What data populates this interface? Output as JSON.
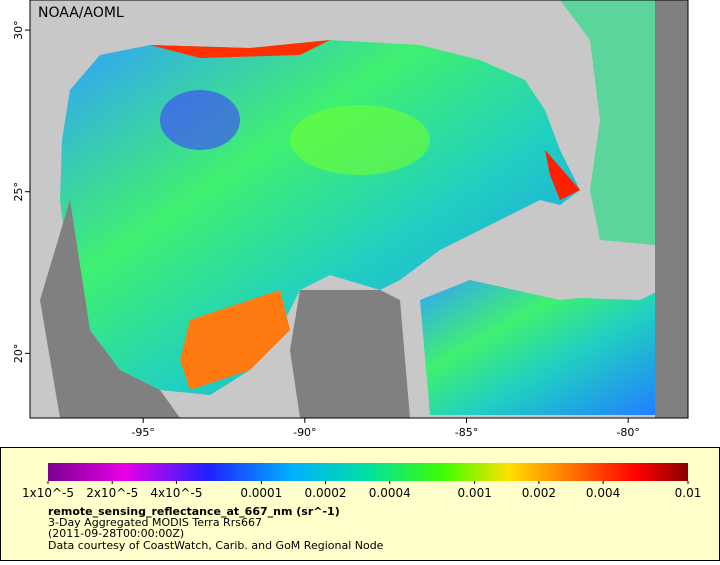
{
  "map": {
    "watermark": "NOAA/AOML",
    "xlim": [
      -98.5,
      -78.15
    ],
    "ylim": [
      18,
      30.93
    ],
    "xticks": [
      {
        "value": -95,
        "label": "-95°"
      },
      {
        "value": -90,
        "label": "-90°"
      },
      {
        "value": -85,
        "label": "-85°"
      },
      {
        "value": -80,
        "label": "-80°"
      }
    ],
    "yticks": [
      {
        "value": 20,
        "label": "20°"
      },
      {
        "value": 25,
        "label": "25°"
      },
      {
        "value": 30,
        "label": "30°"
      }
    ],
    "colorbar": {
      "scale": "log",
      "lim": [
        1e-05,
        0.01
      ],
      "ticks": [
        {
          "value": 1e-05,
          "label": "1x10^-5"
        },
        {
          "value": 2e-05,
          "label": "2x10^-5"
        },
        {
          "value": 4e-05,
          "label": "4x10^-5"
        },
        0.0001,
        0.0002,
        0.0004,
        0.001,
        0.002,
        0.004,
        0.01
      ]
    },
    "title": "remote_sensing_reflectance_at_667_nm (sr^-1)",
    "lines": [
      "3-Day Aggregated MODIS Terra Rrs667",
      "(2011-09-28T00:00:00Z)",
      "Data courtesy of CoastWatch, Carib. and GoM Regional Node"
    ]
  }
}
